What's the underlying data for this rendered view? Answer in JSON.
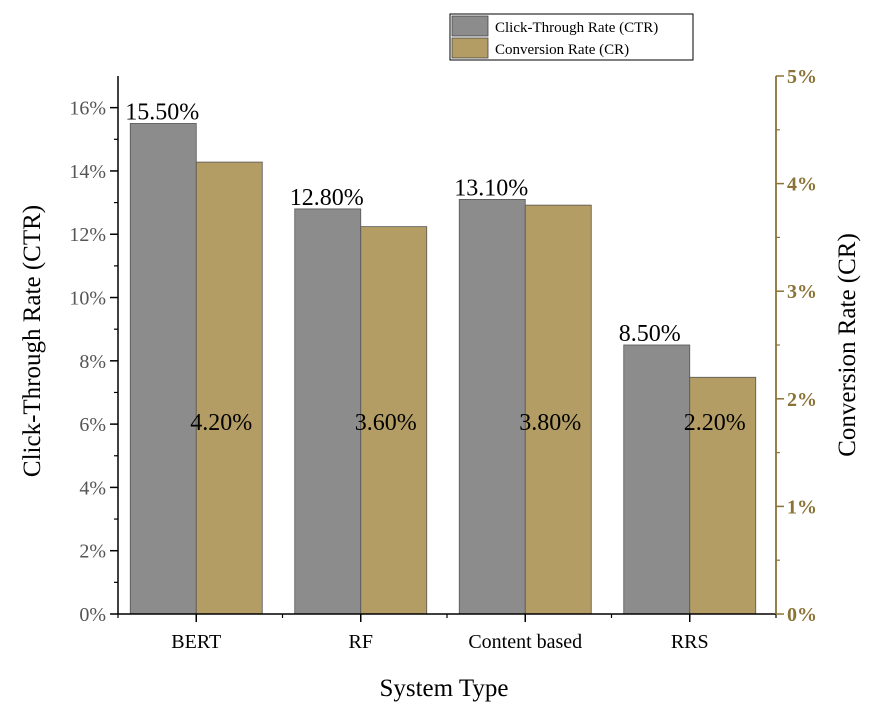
{
  "colors": {
    "ctr": "#8c8c8c",
    "cr": "#b39d65",
    "right_axis": "#8a7336",
    "axis": "#000000"
  },
  "chart_data": {
    "type": "bar",
    "categories": [
      "BERT",
      "RF",
      "Content based",
      "RRS"
    ],
    "series": [
      {
        "name": "Click-Through Rate (CTR)",
        "axis": "left",
        "values": [
          15.5,
          12.8,
          13.1,
          8.5
        ],
        "labels": [
          "15.50%",
          "12.80%",
          "13.10%",
          "8.50%"
        ]
      },
      {
        "name": "Conversion Rate (CR)",
        "axis": "right",
        "values": [
          4.2,
          3.6,
          3.8,
          2.2
        ],
        "labels": [
          "4.20%",
          "3.60%",
          "3.80%",
          "2.20%"
        ]
      }
    ],
    "xlabel": "System Type",
    "ylabel_left": "Click-Through Rate (CTR)",
    "ylabel_right": "Conversion Rate (CR)",
    "ylim_left": [
      0,
      17
    ],
    "ylim_right": [
      0,
      5
    ],
    "yticks_left": [
      "0%",
      "2%",
      "4%",
      "6%",
      "8%",
      "10%",
      "12%",
      "14%",
      "16%"
    ],
    "yticks_right": [
      "0%",
      "1%",
      "2%",
      "3%",
      "4%",
      "5%"
    ],
    "grid": false,
    "legend_position": "top-right"
  }
}
